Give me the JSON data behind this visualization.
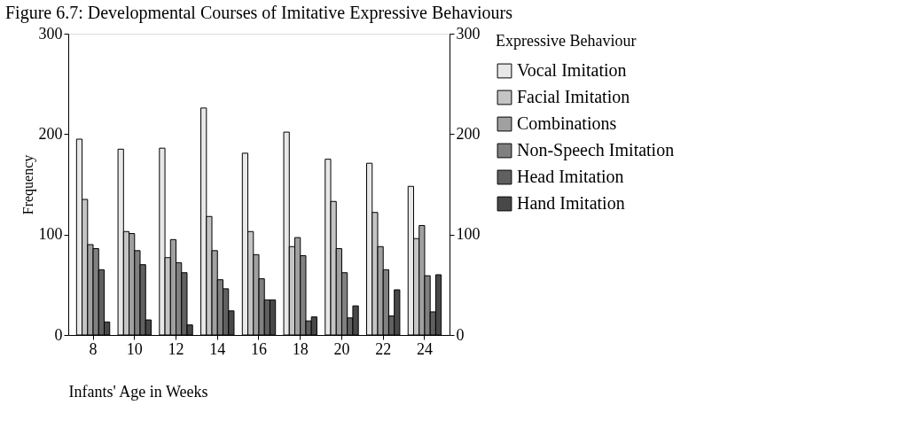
{
  "chart_data": {
    "type": "bar",
    "title": "Figure 6.7: Developmental Courses of Imitative Expressive Behaviours",
    "xlabel": "Infants' Age in Weeks",
    "ylabel": "Frequency",
    "legend_title": "Expressive Behaviour",
    "categories": [
      "8",
      "10",
      "12",
      "14",
      "16",
      "18",
      "20",
      "22",
      "24"
    ],
    "series": [
      {
        "name": "Vocal Imitation",
        "color": "#e8e8e8",
        "values": [
          195,
          185,
          186,
          226,
          181,
          202,
          175,
          171,
          148
        ]
      },
      {
        "name": "Facial Imitation",
        "color": "#c4c4c4",
        "values": [
          135,
          103,
          77,
          118,
          103,
          88,
          133,
          122,
          96
        ]
      },
      {
        "name": "Combinations",
        "color": "#a0a0a0",
        "values": [
          90,
          101,
          95,
          84,
          80,
          97,
          86,
          88,
          109
        ]
      },
      {
        "name": "Non-Speech Imitation",
        "color": "#808080",
        "values": [
          86,
          84,
          72,
          55,
          56,
          79,
          62,
          65,
          59
        ]
      },
      {
        "name": "Head Imitation",
        "color": "#606060",
        "values": [
          65,
          70,
          62,
          46,
          35,
          14,
          17,
          19,
          23
        ]
      },
      {
        "name": "Hand Imitation",
        "color": "#484848",
        "values": [
          13,
          15,
          10,
          24,
          35,
          18,
          29,
          45,
          60
        ]
      }
    ],
    "ylim": [
      0,
      300
    ],
    "yticks": [
      0,
      100,
      200,
      300
    ],
    "y2lim": [
      0,
      300
    ],
    "y2ticks": [
      0,
      100,
      200,
      300
    ],
    "grid": false,
    "legend": "right"
  }
}
